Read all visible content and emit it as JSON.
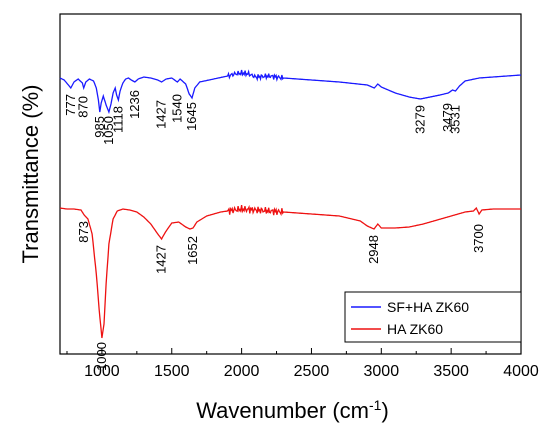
{
  "chart_data": {
    "type": "line",
    "xlabel": "Wavenumber (cm",
    "xlabel_sup": "-1",
    "xlabel_close": ")",
    "ylabel": "Transmittance (%)",
    "xlim": [
      700,
      4000
    ],
    "x_ticks": [
      1000,
      1500,
      2000,
      2500,
      3000,
      3500,
      4000
    ],
    "x_tick_labels": [
      "1000",
      "1500",
      "2000",
      "2500",
      "3000",
      "3500",
      "4000"
    ],
    "y_ticks_shown": false,
    "legend_position": "bottom-right",
    "series": [
      {
        "name": "SF+HA ZK60",
        "color": "#1a1aff",
        "points": [
          [
            700,
            40
          ],
          [
            730,
            42
          ],
          [
            760,
            47
          ],
          [
            777,
            50
          ],
          [
            800,
            44
          ],
          [
            830,
            41
          ],
          [
            860,
            45
          ],
          [
            870,
            50
          ],
          [
            885,
            44
          ],
          [
            910,
            41
          ],
          [
            940,
            43
          ],
          [
            960,
            50
          ],
          [
            975,
            62
          ],
          [
            985,
            74
          ],
          [
            995,
            65
          ],
          [
            1010,
            58
          ],
          [
            1030,
            67
          ],
          [
            1050,
            74
          ],
          [
            1065,
            66
          ],
          [
            1080,
            55
          ],
          [
            1095,
            50
          ],
          [
            1105,
            57
          ],
          [
            1118,
            62
          ],
          [
            1130,
            53
          ],
          [
            1150,
            45
          ],
          [
            1170,
            41
          ],
          [
            1190,
            40
          ],
          [
            1210,
            42
          ],
          [
            1236,
            44
          ],
          [
            1260,
            41
          ],
          [
            1300,
            39
          ],
          [
            1350,
            40
          ],
          [
            1400,
            42
          ],
          [
            1427,
            44
          ],
          [
            1460,
            41
          ],
          [
            1500,
            40
          ],
          [
            1540,
            44
          ],
          [
            1560,
            41
          ],
          [
            1600,
            46
          ],
          [
            1625,
            56
          ],
          [
            1645,
            60
          ],
          [
            1665,
            50
          ],
          [
            1700,
            44
          ],
          [
            1800,
            41
          ],
          [
            1900,
            38
          ],
          [
            1950,
            36
          ],
          [
            2000,
            35
          ],
          [
            2050,
            36
          ],
          [
            2100,
            39
          ],
          [
            2200,
            38
          ],
          [
            2300,
            40
          ],
          [
            2500,
            42
          ],
          [
            2700,
            44
          ],
          [
            2900,
            47
          ],
          [
            2950,
            50
          ],
          [
            2975,
            46
          ],
          [
            3000,
            49
          ],
          [
            3100,
            55
          ],
          [
            3200,
            59
          ],
          [
            3279,
            61
          ],
          [
            3350,
            59
          ],
          [
            3420,
            57
          ],
          [
            3479,
            55
          ],
          [
            3510,
            52
          ],
          [
            3531,
            53
          ],
          [
            3560,
            48
          ],
          [
            3600,
            43
          ],
          [
            3700,
            40
          ],
          [
            3800,
            39
          ],
          [
            3900,
            38
          ],
          [
            4000,
            37
          ]
        ]
      },
      {
        "name": "HA ZK60",
        "color": "#ee1111",
        "points": [
          [
            700,
            184
          ],
          [
            750,
            185
          ],
          [
            800,
            185
          ],
          [
            850,
            186
          ],
          [
            873,
            191
          ],
          [
            900,
            195
          ],
          [
            930,
            210
          ],
          [
            960,
            250
          ],
          [
            980,
            285
          ],
          [
            1000,
            314
          ],
          [
            1015,
            300
          ],
          [
            1030,
            260
          ],
          [
            1050,
            220
          ],
          [
            1080,
            195
          ],
          [
            1110,
            187
          ],
          [
            1150,
            185
          ],
          [
            1200,
            186
          ],
          [
            1250,
            188
          ],
          [
            1300,
            193
          ],
          [
            1350,
            200
          ],
          [
            1400,
            210
          ],
          [
            1427,
            215
          ],
          [
            1455,
            208
          ],
          [
            1500,
            199
          ],
          [
            1550,
            198
          ],
          [
            1600,
            203
          ],
          [
            1630,
            205
          ],
          [
            1652,
            204
          ],
          [
            1680,
            198
          ],
          [
            1750,
            192
          ],
          [
            1850,
            188
          ],
          [
            1950,
            186
          ],
          [
            2000,
            185
          ],
          [
            2100,
            186
          ],
          [
            2200,
            187
          ],
          [
            2300,
            188
          ],
          [
            2500,
            190
          ],
          [
            2700,
            192
          ],
          [
            2850,
            197
          ],
          [
            2900,
            202
          ],
          [
            2948,
            205
          ],
          [
            2975,
            200
          ],
          [
            3000,
            204
          ],
          [
            3100,
            204
          ],
          [
            3200,
            203
          ],
          [
            3300,
            200
          ],
          [
            3400,
            196
          ],
          [
            3500,
            192
          ],
          [
            3600,
            188
          ],
          [
            3660,
            187
          ],
          [
            3680,
            184
          ],
          [
            3700,
            190
          ],
          [
            3720,
            186
          ],
          [
            3800,
            185
          ],
          [
            3900,
            185
          ],
          [
            4000,
            185
          ]
        ]
      }
    ],
    "annotations": [
      {
        "text": "777",
        "series": 0,
        "x": 777
      },
      {
        "text": "870",
        "series": 0,
        "x": 870
      },
      {
        "text": "985",
        "series": 0,
        "x": 985
      },
      {
        "text": "1050",
        "series": 0,
        "x": 1050
      },
      {
        "text": "1118",
        "series": 0,
        "x": 1118
      },
      {
        "text": "1236",
        "series": 0,
        "x": 1236
      },
      {
        "text": "1427",
        "series": 0,
        "x": 1427
      },
      {
        "text": "1540",
        "series": 0,
        "x": 1540
      },
      {
        "text": "1645",
        "series": 0,
        "x": 1645
      },
      {
        "text": "3279",
        "series": 0,
        "x": 3279
      },
      {
        "text": "3479",
        "series": 0,
        "x": 3479
      },
      {
        "text": "3531",
        "series": 0,
        "x": 3531
      },
      {
        "text": "873",
        "series": 1,
        "x": 873
      },
      {
        "text": "1000",
        "series": 1,
        "x": 1000
      },
      {
        "text": "1427",
        "series": 1,
        "x": 1427
      },
      {
        "text": "1652",
        "series": 1,
        "x": 1652
      },
      {
        "text": "2948",
        "series": 1,
        "x": 2948
      },
      {
        "text": "3700",
        "series": 1,
        "x": 3700
      }
    ]
  }
}
